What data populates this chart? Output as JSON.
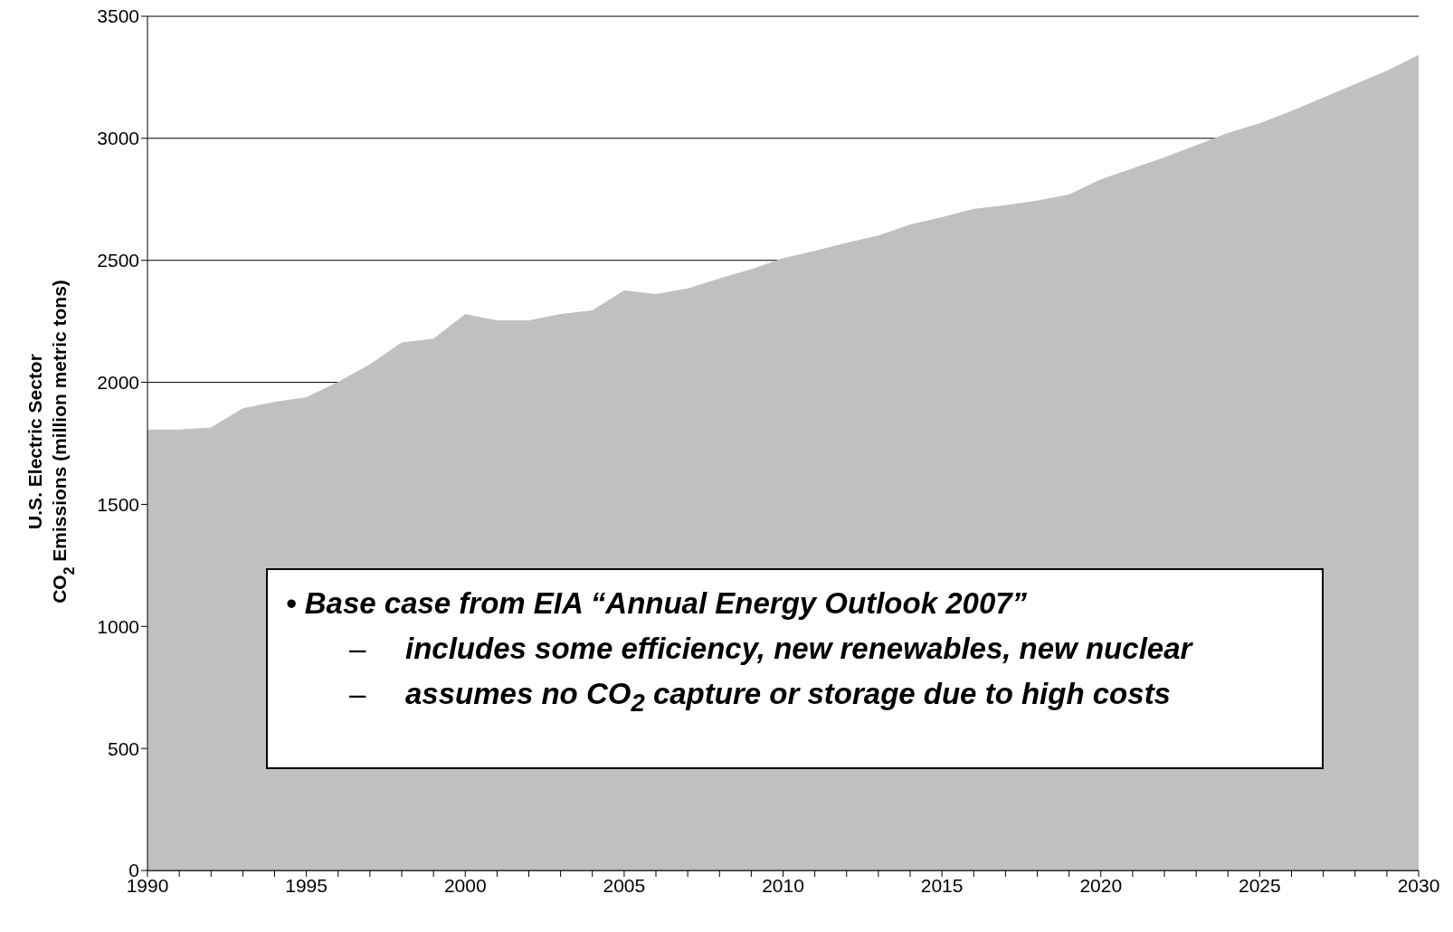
{
  "chart_data": {
    "type": "area",
    "ylabel": "U.S. Electric Sector\nCO$_{2}$ Emissions (million metric tons)",
    "x": [
      1990,
      1991,
      1992,
      1993,
      1994,
      1995,
      1996,
      1997,
      1998,
      1999,
      2000,
      2001,
      2002,
      2003,
      2004,
      2005,
      2006,
      2007,
      2008,
      2009,
      2010,
      2011,
      2012,
      2013,
      2014,
      2015,
      2016,
      2017,
      2018,
      2019,
      2020,
      2021,
      2022,
      2023,
      2024,
      2025,
      2026,
      2027,
      2028,
      2029,
      2030
    ],
    "series": [
      {
        "color": "#c0c0c0",
        "values": [
          1805,
          1805,
          1813,
          1892,
          1918,
          1937,
          2000,
          2072,
          2162,
          2177,
          2278,
          2252,
          2252,
          2278,
          2293,
          2375,
          2360,
          2383,
          2424,
          2462,
          2507,
          2537,
          2570,
          2600,
          2645,
          2675,
          2709,
          2724,
          2743,
          2768,
          2830,
          2875,
          2920,
          2970,
          3020,
          3060,
          3110,
          3165,
          3220,
          3275,
          3340
        ]
      }
    ],
    "xlim": [
      1990,
      2030
    ],
    "xticks": [
      1990,
      {
        "value": 1991,
        "label": null
      },
      {
        "value": 1992,
        "label": null
      },
      {
        "value": 1993,
        "label": null
      },
      {
        "value": 1994,
        "label": null
      },
      1995,
      {
        "value": 1996,
        "label": null
      },
      {
        "value": 1997,
        "label": null
      },
      {
        "value": 1998,
        "label": null
      },
      {
        "value": 1999,
        "label": null
      },
      2000,
      {
        "value": 2001,
        "label": null
      },
      {
        "value": 2002,
        "label": null
      },
      {
        "value": 2003,
        "label": null
      },
      {
        "value": 2004,
        "label": null
      },
      2005,
      {
        "value": 2006,
        "label": null
      },
      {
        "value": 2007,
        "label": null
      },
      {
        "value": 2008,
        "label": null
      },
      {
        "value": 2009,
        "label": null
      },
      2010,
      {
        "value": 2011,
        "label": null
      },
      {
        "value": 2012,
        "label": null
      },
      {
        "value": 2013,
        "label": null
      },
      {
        "value": 2014,
        "label": null
      },
      2015,
      {
        "value": 2016,
        "label": null
      },
      {
        "value": 2017,
        "label": null
      },
      {
        "value": 2018,
        "label": null
      },
      {
        "value": 2019,
        "label": null
      },
      2020,
      {
        "value": 2021,
        "label": null
      },
      {
        "value": 2022,
        "label": null
      },
      {
        "value": 2023,
        "label": null
      },
      {
        "value": 2024,
        "label": null
      },
      2025,
      {
        "value": 2026,
        "label": null
      },
      {
        "value": 2027,
        "label": null
      },
      {
        "value": 2028,
        "label": null
      },
      {
        "value": 2029,
        "label": null
      },
      2030
    ],
    "ylim": [
      0,
      3500
    ],
    "yticks": [
      0,
      500,
      1000,
      1500,
      2000,
      2500,
      3000,
      3500
    ],
    "grid": "y",
    "legend": false,
    "annotations": [
      "• Base case from EIA “Annual Energy Outlook 2007”",
      "–\tincludes some efficiency, new renewables, new nuclear",
      "–\tassumes no CO$_{2}$ capture or storage due to high costs"
    ]
  }
}
